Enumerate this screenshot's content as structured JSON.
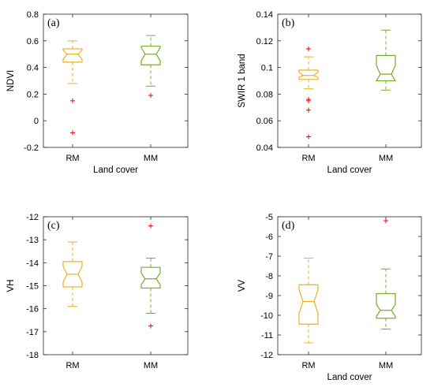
{
  "colors": {
    "RM": "#EDB120",
    "MM": "#77AC30",
    "outlier": "#FF0000",
    "axis": "#262626"
  },
  "chart_data": [
    {
      "type": "box",
      "panel_label": "(a)",
      "xlabel": "Land cover",
      "ylabel": "NDVI",
      "categories": [
        "RM",
        "MM"
      ],
      "ylim": [
        -0.2,
        0.8
      ],
      "yticks": [
        -0.2,
        0,
        0.2,
        0.4,
        0.6,
        0.8
      ],
      "ytick_labels": [
        "-0.2",
        "0",
        "0.2",
        "0.4",
        "0.6",
        "0.8"
      ],
      "notched": true,
      "boxes": [
        {
          "category": "RM",
          "whisker_low": 0.28,
          "q1": 0.44,
          "median": 0.5,
          "q3": 0.54,
          "whisker_high": 0.6,
          "notch_low": 0.46,
          "notch_high": 0.53,
          "outliers": [
            0.15,
            -0.09
          ]
        },
        {
          "category": "MM",
          "whisker_low": 0.26,
          "q1": 0.42,
          "median": 0.5,
          "q3": 0.56,
          "whisker_high": 0.64,
          "notch_low": 0.45,
          "notch_high": 0.55,
          "outliers": [
            0.19
          ]
        }
      ]
    },
    {
      "type": "box",
      "panel_label": "(b)",
      "xlabel": "Land cover",
      "ylabel": "SWIR 1 band",
      "categories": [
        "RM",
        "MM"
      ],
      "ylim": [
        0.04,
        0.14
      ],
      "yticks": [
        0.04,
        0.06,
        0.08,
        0.1,
        0.12,
        0.14
      ],
      "ytick_labels": [
        "0.04",
        "0.06",
        "0.08",
        "0.1",
        "0.12",
        "0.14"
      ],
      "notched": true,
      "boxes": [
        {
          "category": "RM",
          "whisker_low": 0.084,
          "q1": 0.091,
          "median": 0.094,
          "q3": 0.098,
          "whisker_high": 0.108,
          "notch_low": 0.0925,
          "notch_high": 0.0965,
          "outliers": [
            0.114,
            0.076,
            0.075,
            0.068,
            0.048
          ]
        },
        {
          "category": "MM",
          "whisker_low": 0.083,
          "q1": 0.09,
          "median": 0.095,
          "q3": 0.109,
          "whisker_high": 0.128,
          "notch_low": 0.09,
          "notch_high": 0.1015,
          "outliers": []
        }
      ]
    },
    {
      "type": "box",
      "panel_label": "(c)",
      "xlabel": "",
      "ylabel": "VH",
      "categories": [
        "RM",
        "MM"
      ],
      "ylim": [
        -18,
        -12
      ],
      "yticks": [
        -18,
        -17,
        -16,
        -15,
        -14,
        -13,
        -12
      ],
      "ytick_labels": [
        "-18",
        "-17",
        "-16",
        "-15",
        "-14",
        "-13",
        "-12"
      ],
      "notched": true,
      "boxes": [
        {
          "category": "RM",
          "whisker_low": -15.9,
          "q1": -15.05,
          "median": -14.5,
          "q3": -13.95,
          "whisker_high": -13.1,
          "notch_low": -14.85,
          "notch_high": -14.15,
          "outliers": []
        },
        {
          "category": "MM",
          "whisker_low": -16.2,
          "q1": -15.1,
          "median": -14.7,
          "q3": -14.2,
          "whisker_high": -13.8,
          "notch_low": -14.95,
          "notch_high": -14.45,
          "outliers": [
            -12.4,
            -16.75
          ]
        }
      ]
    },
    {
      "type": "box",
      "panel_label": "(d)",
      "xlabel": "Land cover",
      "ylabel": "VV",
      "categories": [
        "RM",
        "MM"
      ],
      "ylim": [
        -12,
        -5
      ],
      "yticks": [
        -12,
        -11,
        -10,
        -9,
        -8,
        -7,
        -6,
        -5
      ],
      "ytick_labels": [
        "-12",
        "-11",
        "-10",
        "-9",
        "-8",
        "-7",
        "-6",
        "-5"
      ],
      "notched": true,
      "boxes": [
        {
          "category": "RM",
          "whisker_low": -11.4,
          "q1": -10.45,
          "median": -9.3,
          "q3": -8.45,
          "whisker_high": -7.1,
          "notch_low": -9.9,
          "notch_high": -8.7,
          "outliers": []
        },
        {
          "category": "MM",
          "whisker_low": -10.7,
          "q1": -10.15,
          "median": -9.75,
          "q3": -8.9,
          "whisker_high": -7.65,
          "notch_low": -10.05,
          "notch_high": -9.45,
          "outliers": [
            -5.2
          ]
        }
      ]
    }
  ]
}
